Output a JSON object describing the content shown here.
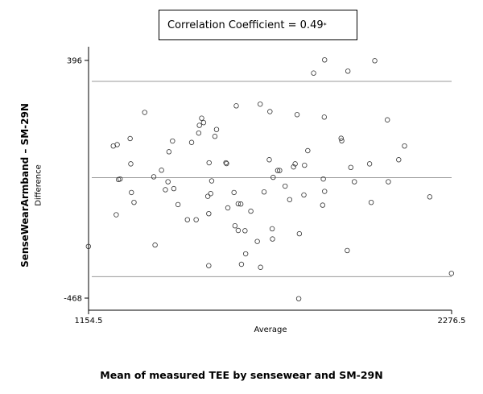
{
  "chart_data": {
    "type": "scatter",
    "title": "Mean of measured TEE by sensewear and SM-29N",
    "xlabel": "Average",
    "ylabel": "SenseWearArmband – SM-29N",
    "ylabel_secondary": "Difference",
    "annotation": {
      "text": "Correlation Coefficient = 0.49",
      "marker": "*"
    },
    "xlim": [
      1154.5,
      2276.5
    ],
    "ylim": [
      -468,
      396
    ],
    "x_ticks": [
      "1154.5",
      "2276.5"
    ],
    "y_ticks": [
      "396",
      "-468"
    ],
    "reference_lines": [
      {
        "name": "upper limit",
        "y": 320
      },
      {
        "name": "mean",
        "y": -30
      },
      {
        "name": "lower limit",
        "y": -390
      }
    ],
    "points": [
      {
        "x": 1154,
        "y": -280
      },
      {
        "x": 1231,
        "y": 85
      },
      {
        "x": 1240,
        "y": -165
      },
      {
        "x": 1243,
        "y": 90
      },
      {
        "x": 1247,
        "y": -37
      },
      {
        "x": 1252,
        "y": -35
      },
      {
        "x": 1283,
        "y": 112
      },
      {
        "x": 1285,
        "y": 20
      },
      {
        "x": 1287,
        "y": -84
      },
      {
        "x": 1295,
        "y": -120
      },
      {
        "x": 1328,
        "y": 207
      },
      {
        "x": 1356,
        "y": -27
      },
      {
        "x": 1360,
        "y": -275
      },
      {
        "x": 1380,
        "y": -3
      },
      {
        "x": 1392,
        "y": -74
      },
      {
        "x": 1400,
        "y": -45
      },
      {
        "x": 1403,
        "y": 64
      },
      {
        "x": 1414,
        "y": 103
      },
      {
        "x": 1418,
        "y": -70
      },
      {
        "x": 1431,
        "y": -128
      },
      {
        "x": 1460,
        "y": -183
      },
      {
        "x": 1473,
        "y": 98
      },
      {
        "x": 1487,
        "y": -183
      },
      {
        "x": 1495,
        "y": 132
      },
      {
        "x": 1497,
        "y": 160
      },
      {
        "x": 1504,
        "y": 186
      },
      {
        "x": 1510,
        "y": 170
      },
      {
        "x": 1523,
        "y": -98
      },
      {
        "x": 1526,
        "y": -161
      },
      {
        "x": 1527,
        "y": 24
      },
      {
        "x": 1532,
        "y": -88
      },
      {
        "x": 1535,
        "y": -42
      },
      {
        "x": 1545,
        "y": 120
      },
      {
        "x": 1550,
        "y": 145
      },
      {
        "x": 1526,
        "y": -350
      },
      {
        "x": 1579,
        "y": 24
      },
      {
        "x": 1581,
        "y": 21
      },
      {
        "x": 1585,
        "y": -140
      },
      {
        "x": 1604,
        "y": -84
      },
      {
        "x": 1607,
        "y": -205
      },
      {
        "x": 1611,
        "y": 231
      },
      {
        "x": 1617,
        "y": -222
      },
      {
        "x": 1617,
        "y": -125
      },
      {
        "x": 1625,
        "y": -126
      },
      {
        "x": 1627,
        "y": -345
      },
      {
        "x": 1640,
        "y": -307
      },
      {
        "x": 1638,
        "y": -223
      },
      {
        "x": 1656,
        "y": -152
      },
      {
        "x": 1676,
        "y": -262
      },
      {
        "x": 1686,
        "y": -356
      },
      {
        "x": 1685,
        "y": 237
      },
      {
        "x": 1697,
        "y": -82
      },
      {
        "x": 1713,
        "y": 35
      },
      {
        "x": 1715,
        "y": 210
      },
      {
        "x": 1722,
        "y": -216
      },
      {
        "x": 1723,
        "y": -253
      },
      {
        "x": 1725,
        "y": -29
      },
      {
        "x": 1739,
        "y": -4
      },
      {
        "x": 1745,
        "y": -4
      },
      {
        "x": 1762,
        "y": -61
      },
      {
        "x": 1776,
        "y": -110
      },
      {
        "x": 1788,
        "y": 9
      },
      {
        "x": 1793,
        "y": 20
      },
      {
        "x": 1799,
        "y": 199
      },
      {
        "x": 1804,
        "y": -470
      },
      {
        "x": 1806,
        "y": -234
      },
      {
        "x": 1822,
        "y": 15
      },
      {
        "x": 1820,
        "y": -93
      },
      {
        "x": 1832,
        "y": 68
      },
      {
        "x": 1850,
        "y": 350
      },
      {
        "x": 1883,
        "y": 190
      },
      {
        "x": 1884,
        "y": 398
      },
      {
        "x": 1880,
        "y": -35
      },
      {
        "x": 1878,
        "y": -130
      },
      {
        "x": 1884,
        "y": -80
      },
      {
        "x": 1935,
        "y": 113
      },
      {
        "x": 1937,
        "y": 104
      },
      {
        "x": 1954,
        "y": -295
      },
      {
        "x": 1956,
        "y": 357
      },
      {
        "x": 1976,
        "y": -45
      },
      {
        "x": 1965,
        "y": 7
      },
      {
        "x": 2028,
        "y": -120
      },
      {
        "x": 2023,
        "y": 20
      },
      {
        "x": 2039,
        "y": 395
      },
      {
        "x": 2078,
        "y": 180
      },
      {
        "x": 2081,
        "y": -45
      },
      {
        "x": 2113,
        "y": 35
      },
      {
        "x": 2131,
        "y": 85
      },
      {
        "x": 2209,
        "y": -100
      },
      {
        "x": 2276,
        "y": -378
      }
    ]
  }
}
